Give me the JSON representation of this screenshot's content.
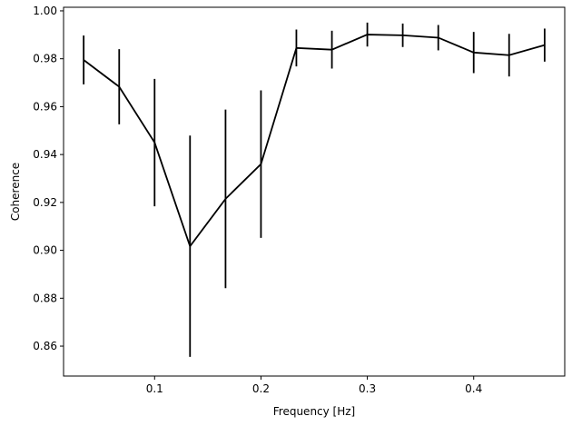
{
  "chart_data": {
    "type": "line",
    "title": "",
    "xlabel": "Frequency [Hz]",
    "ylabel": "Coherence",
    "xlim": [
      0.0144,
      0.4856
    ],
    "ylim": [
      0.8475,
      1.0015
    ],
    "xticks": [
      0.1,
      0.2,
      0.3,
      0.4
    ],
    "xtick_labels": [
      "0.1",
      "0.2",
      "0.3",
      "0.4"
    ],
    "yticks": [
      0.86,
      0.88,
      0.9,
      0.92,
      0.94,
      0.96,
      0.98,
      1.0
    ],
    "ytick_labels": [
      "0.86",
      "0.88",
      "0.90",
      "0.92",
      "0.94",
      "0.96",
      "0.98",
      "1.00"
    ],
    "grid": false,
    "line_color": "#000000",
    "series": [
      {
        "x": [
          0.0333,
          0.0667,
          0.1,
          0.1333,
          0.1667,
          0.2,
          0.2333,
          0.2667,
          0.3,
          0.3333,
          0.3667,
          0.4,
          0.4333,
          0.4667
        ],
        "y": [
          0.9795,
          0.9683,
          0.945,
          0.9017,
          0.9215,
          0.936,
          0.9845,
          0.9838,
          0.9901,
          0.9898,
          0.9888,
          0.9826,
          0.9815,
          0.9857
        ],
        "error": [
          0.0102,
          0.0157,
          0.0266,
          0.0462,
          0.0373,
          0.0308,
          0.0077,
          0.0079,
          0.005,
          0.0049,
          0.0053,
          0.0086,
          0.0089,
          0.0069
        ]
      }
    ]
  }
}
